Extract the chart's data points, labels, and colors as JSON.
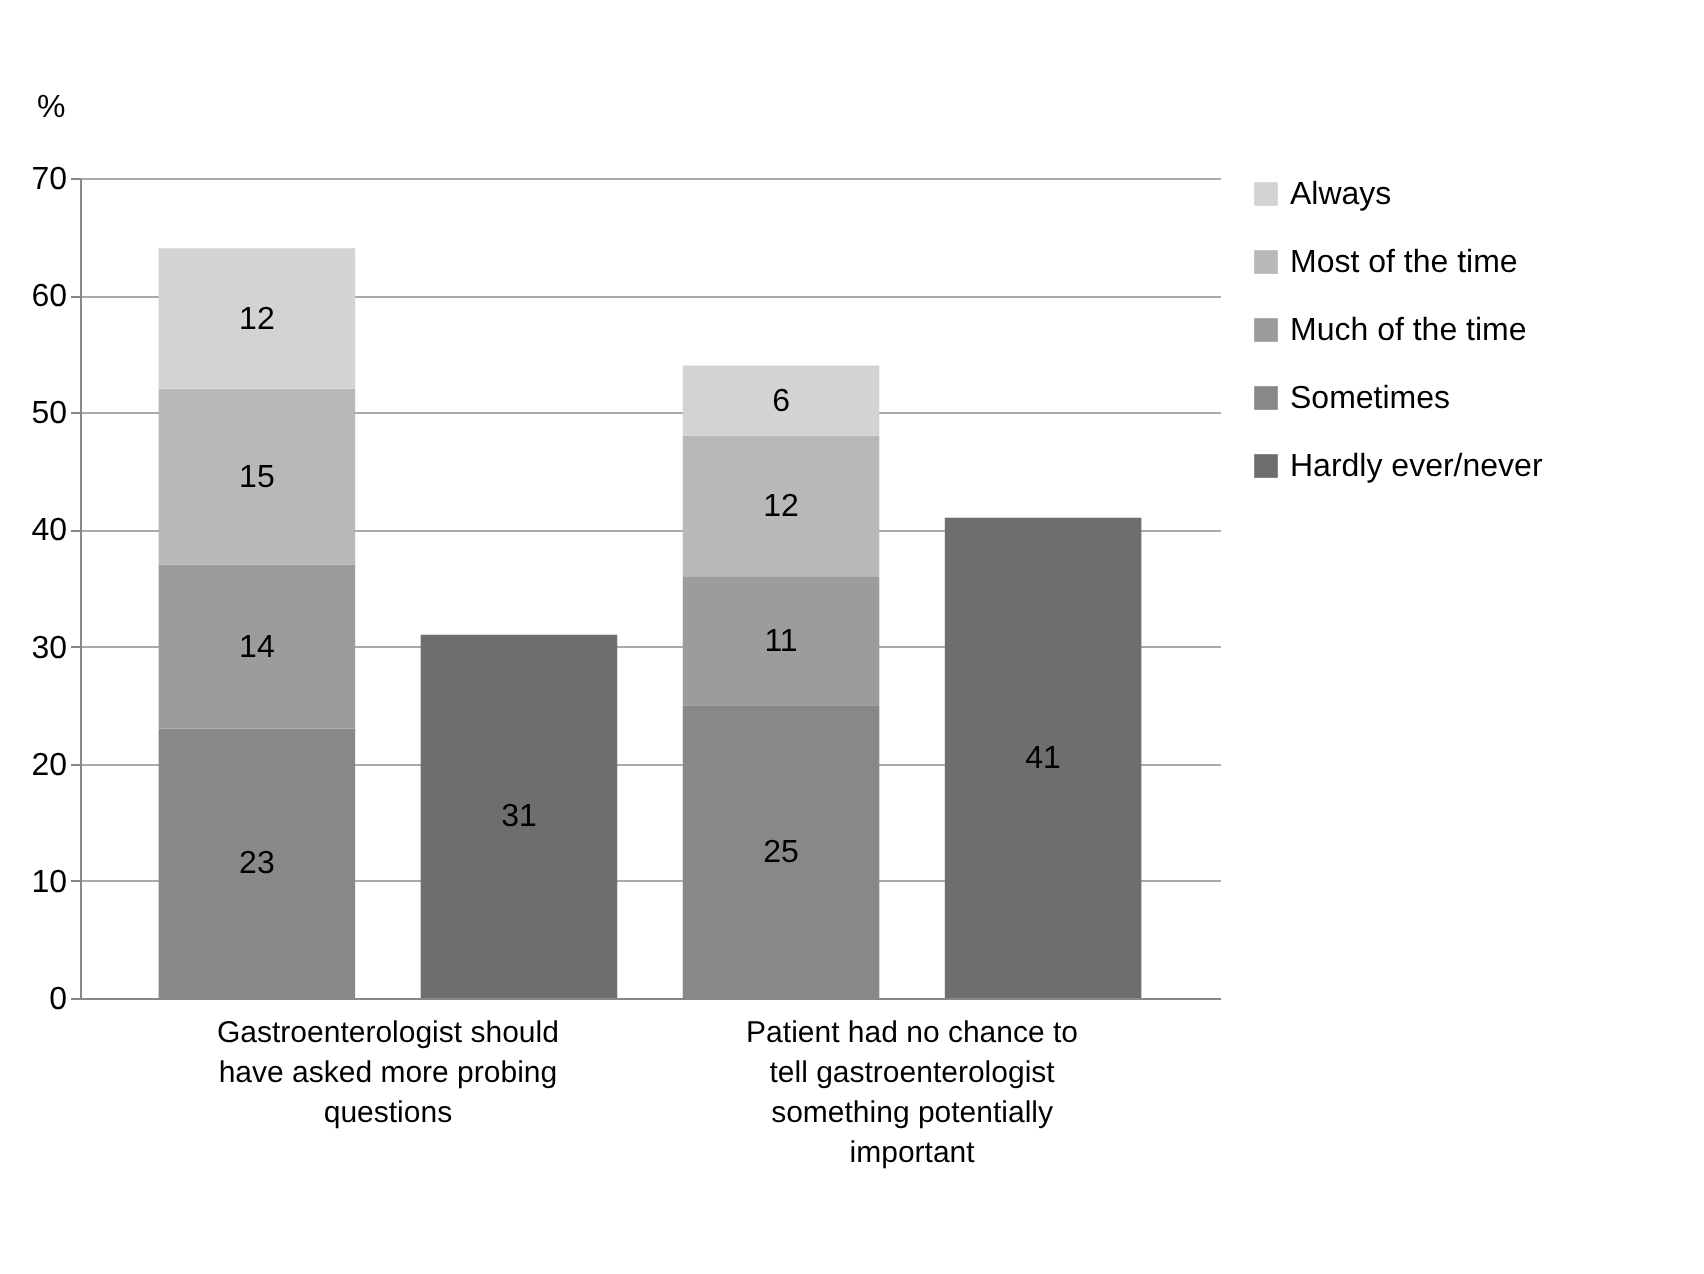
{
  "chart_data": {
    "type": "bar",
    "stacked": true,
    "ylabel": "%",
    "categories": [
      "Gastroenterologist should have asked more probing questions",
      null,
      "Patient had no chance to tell gastroenterologist something potentially important",
      null
    ],
    "series": [
      {
        "name": "Sometimes",
        "color": "#888888",
        "values": [
          23,
          null,
          25,
          null
        ]
      },
      {
        "name": "Much of the time",
        "color": "#9c9c9c",
        "values": [
          14,
          null,
          11,
          null
        ]
      },
      {
        "name": "Most of the time",
        "color": "#b8b8b8",
        "values": [
          15,
          null,
          12,
          null
        ]
      },
      {
        "name": "Always",
        "color": "#d3d3d3",
        "values": [
          12,
          null,
          6,
          null
        ]
      },
      {
        "name": "Hardly ever/never",
        "color": "#6e6e6e",
        "values": [
          null,
          31,
          null,
          41
        ]
      }
    ],
    "ylim": [
      0,
      70
    ],
    "yticks": [
      0,
      10,
      20,
      30,
      40,
      50,
      60,
      70
    ],
    "grid": "y",
    "legend": "right",
    "data_labels": true
  }
}
